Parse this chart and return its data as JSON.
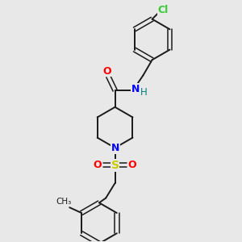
{
  "bg_color": "#e8e8e8",
  "bond_color": "#1a1a1a",
  "O_color": "#ff0000",
  "N_color": "#0000ff",
  "S_color": "#cccc00",
  "Cl_color": "#33cc33",
  "NH_color": "#008080",
  "figsize": [
    3.0,
    3.0
  ],
  "dpi": 100,
  "xlim": [
    0,
    10
  ],
  "ylim": [
    0,
    10
  ]
}
